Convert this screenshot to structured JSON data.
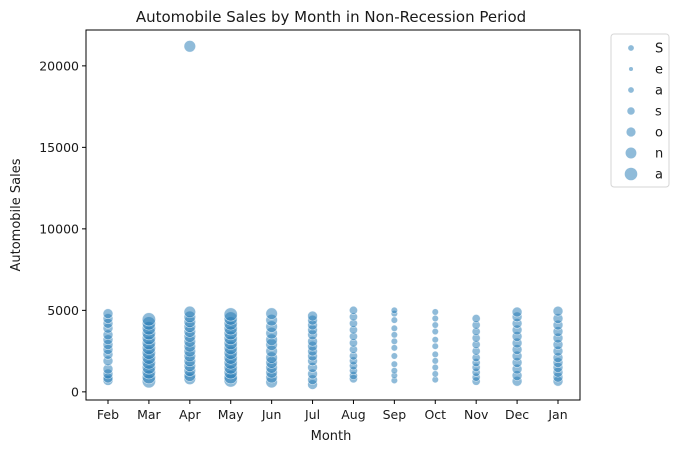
{
  "chart_data": {
    "type": "scatter",
    "title": "Automobile Sales by Month in Non-Recession Period",
    "xlabel": "Month",
    "ylabel": "Automobile Sales",
    "categories": [
      "Feb",
      "Mar",
      "Apr",
      "May",
      "Jun",
      "Jul",
      "Aug",
      "Sep",
      "Oct",
      "Nov",
      "Dec",
      "Jan"
    ],
    "ylim": [
      -500,
      22200
    ],
    "yticks": [
      0,
      5000,
      10000,
      15000,
      20000
    ],
    "ytick_labels": [
      "0",
      "5000",
      "10000",
      "15000",
      "20000"
    ],
    "grid": false,
    "legend_position": "outside-right",
    "legend_title": "",
    "legend": [
      "S",
      "e",
      "a",
      "s",
      "o",
      "n",
      "a"
    ],
    "color": "#1f77b4",
    "point_opacity": 0.5,
    "size_levels": [
      2,
      1,
      2,
      3,
      4,
      5,
      6
    ],
    "month_size_level": [
      3,
      5,
      4,
      5,
      4,
      3,
      2,
      1,
      1,
      2,
      3,
      3
    ],
    "points": [
      {
        "month": "Feb",
        "sales": [
          700,
          850,
          1100,
          1400,
          1900,
          2300,
          2600,
          2900,
          3200,
          3500,
          3900,
          4200,
          4500,
          4800
        ]
      },
      {
        "month": "Mar",
        "sales": [
          650,
          900,
          1200,
          1500,
          1800,
          2100,
          2400,
          2700,
          3000,
          3300,
          3600,
          3900,
          4200,
          4450
        ]
      },
      {
        "month": "Apr",
        "sales": [
          800,
          1000,
          1300,
          1600,
          1900,
          2200,
          2500,
          2800,
          3100,
          3400,
          3700,
          4000,
          4300,
          4600,
          4900,
          21200
        ]
      },
      {
        "month": "May",
        "sales": [
          700,
          900,
          1200,
          1500,
          1800,
          2100,
          2400,
          2700,
          3000,
          3300,
          3600,
          3900,
          4200,
          4500,
          4750
        ]
      },
      {
        "month": "Jun",
        "sales": [
          600,
          900,
          1200,
          1500,
          1800,
          2100,
          2500,
          2900,
          3200,
          3600,
          4000,
          4400,
          4800
        ]
      },
      {
        "month": "Jul",
        "sales": [
          450,
          750,
          1100,
          1500,
          1900,
          2200,
          2500,
          2800,
          3100,
          3500,
          3800,
          4100,
          4400,
          4650
        ]
      },
      {
        "month": "Aug",
        "sales": [
          800,
          1000,
          1300,
          1600,
          1900,
          2200,
          2600,
          3000,
          3400,
          3800,
          4200,
          4600,
          5000
        ]
      },
      {
        "month": "Sep",
        "sales": [
          700,
          1000,
          1300,
          1700,
          2200,
          2700,
          3100,
          3500,
          3900,
          4400,
          4800,
          5000
        ]
      },
      {
        "month": "Oct",
        "sales": [
          750,
          1100,
          1500,
          1900,
          2300,
          2800,
          3200,
          3700,
          4100,
          4500,
          4900
        ]
      },
      {
        "month": "Nov",
        "sales": [
          650,
          900,
          1200,
          1500,
          1800,
          2100,
          2500,
          2900,
          3300,
          3700,
          4100,
          4500
        ]
      },
      {
        "month": "Dec",
        "sales": [
          650,
          1000,
          1400,
          1800,
          2200,
          2600,
          3000,
          3400,
          3800,
          4200,
          4600,
          4900
        ]
      },
      {
        "month": "Jan",
        "sales": [
          650,
          900,
          1200,
          1500,
          1800,
          2100,
          2500,
          2900,
          3300,
          3700,
          4100,
          4500,
          4950
        ]
      }
    ]
  }
}
